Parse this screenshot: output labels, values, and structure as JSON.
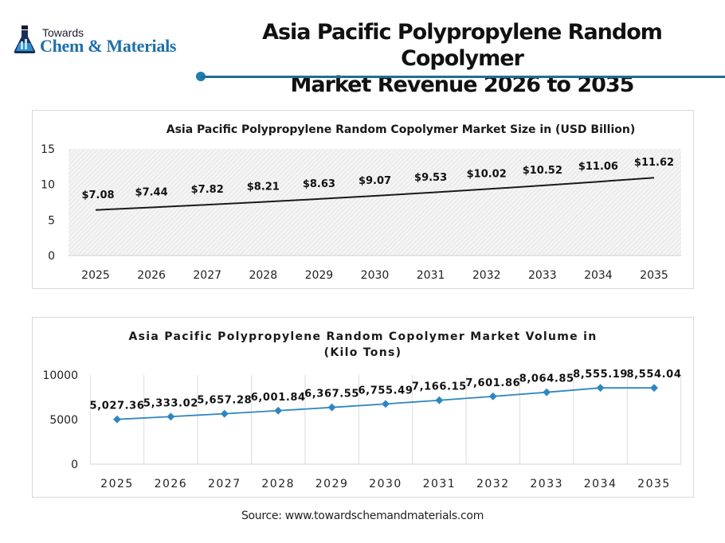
{
  "header": {
    "logo": {
      "top_text": "Towards",
      "main_text": "Chem & Materials",
      "icon": "flask-icon"
    },
    "title_line1": "Asia Pacific Polypropylene Random Copolymer",
    "title_line2": "Market Revenue 2026 to 2035"
  },
  "colors": {
    "accent": "#1e6f93",
    "logo_blue": "#1f6fa8",
    "line_revenue": "#1a1a1a",
    "line_volume": "#2e86c1"
  },
  "chart_data": [
    {
      "type": "line",
      "title": "Asia Pacific Polypropylene Random Copolymer Market Size in (USD Billion)",
      "categories": [
        "2025",
        "2026",
        "2027",
        "2028",
        "2029",
        "2030",
        "2031",
        "2032",
        "2033",
        "2034",
        "2035"
      ],
      "values": [
        7.08,
        7.44,
        7.82,
        8.21,
        8.63,
        9.07,
        9.53,
        10.02,
        10.52,
        11.06,
        11.62
      ],
      "labels": [
        "$7.08",
        "$7.44",
        "$7.82",
        "$8.21",
        "$8.63",
        "$9.07",
        "$9.53",
        "$10.02",
        "$10.52",
        "$11.06",
        "$11.62"
      ],
      "xlabel": "",
      "ylabel": "",
      "yticks": [
        "0",
        "5",
        "10",
        "15"
      ],
      "ylim": [
        0,
        15
      ],
      "grid": false,
      "legend": "none"
    },
    {
      "type": "line",
      "title": "Asia Pacific Polypropylene Random Copolymer Market Volume in (Kilo Tons)",
      "title_line1": "Asia Pacific Polypropylene Random Copolymer Market Volume in",
      "title_line2": "(Kilo Tons)",
      "categories": [
        "2025",
        "2026",
        "2027",
        "2028",
        "2029",
        "2030",
        "2031",
        "2032",
        "2033",
        "2034",
        "2035"
      ],
      "values": [
        5027.36,
        5333.02,
        5657.28,
        6001.84,
        6367.55,
        6755.49,
        7166.15,
        7601.86,
        8064.85,
        8555.19,
        8554.04
      ],
      "labels": [
        "5,027.36",
        "5,333.02",
        "5,657.28",
        "6,001.84",
        "6,367.55",
        "6,755.49",
        "7,166.15",
        "7,601.86",
        "8,064.85",
        "8,555.19",
        "8,554.04"
      ],
      "xlabel": "",
      "ylabel": "",
      "yticks": [
        "0",
        "5000",
        "10000"
      ],
      "ylim": [
        0,
        10000
      ],
      "grid": true,
      "legend": "none"
    }
  ],
  "footer": {
    "source": "Source: www.towardschemandmaterials.com"
  }
}
